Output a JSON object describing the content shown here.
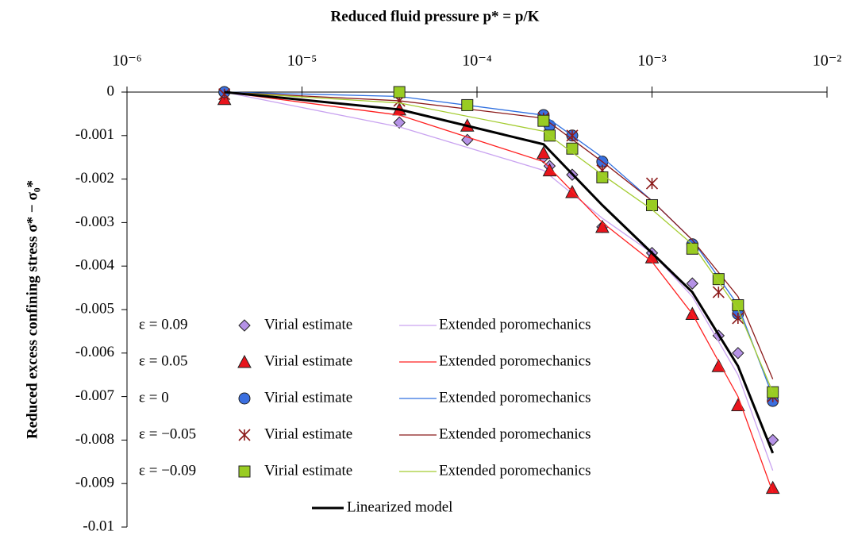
{
  "chart_data": {
    "type": "line",
    "title": "Reduced fluid pressure p* = p/K",
    "y_label": "Reduced excess confining stress σ* − σ₀*",
    "xscale": "log",
    "xlim": [
      1e-06,
      0.01
    ],
    "xticks": [
      {
        "value": 1e-06,
        "label": "10⁻⁶"
      },
      {
        "value": 1e-05,
        "label": "10⁻⁵"
      },
      {
        "value": 0.0001,
        "label": "10⁻⁴"
      },
      {
        "value": 0.001,
        "label": "10⁻³"
      },
      {
        "value": 0.01,
        "label": "10⁻²"
      }
    ],
    "ylim": [
      -0.01,
      0
    ],
    "yticks": [
      0,
      -0.001,
      -0.002,
      -0.003,
      -0.004,
      -0.005,
      -0.006,
      -0.007,
      -0.008,
      -0.009,
      -0.01
    ],
    "series": [
      {
        "name": "Virial estimate",
        "epsilon": "ε = 0.09",
        "kind": "marker",
        "marker": "diamond",
        "color": "#b592e6",
        "x": [
          3.6e-06,
          3.6e-05,
          8.8e-05,
          0.00024,
          0.00026,
          0.00035,
          0.00052,
          0.001,
          0.0017,
          0.0024,
          0.0031,
          0.0049
        ],
        "values": [
          0,
          -0.0007,
          -0.0011,
          -0.0015,
          -0.0017,
          -0.0019,
          -0.0031,
          -0.0037,
          -0.0044,
          -0.0056,
          -0.006,
          -0.008
        ]
      },
      {
        "name": "Extended poromechanics",
        "kind": "line",
        "color": "#c9a3f0",
        "x": [
          3.6e-06,
          3.6e-05,
          0.00024,
          0.00052,
          0.001,
          0.0017,
          0.0031,
          0.0049
        ],
        "values": [
          0,
          -0.0008,
          -0.0018,
          -0.0029,
          -0.0037,
          -0.0047,
          -0.0065,
          -0.0087
        ]
      },
      {
        "name": "Virial estimate",
        "epsilon": "ε = 0.05",
        "kind": "marker",
        "marker": "triangle",
        "color": "#e8141c",
        "x": [
          3.6e-06,
          3.6e-05,
          8.8e-05,
          0.00024,
          0.00026,
          0.00035,
          0.00052,
          0.001,
          0.0017,
          0.0024,
          0.0031,
          0.0049
        ],
        "values": [
          -0.00016,
          -0.0004,
          -0.00077,
          -0.0014,
          -0.0018,
          -0.0023,
          -0.0031,
          -0.0038,
          -0.0051,
          -0.0063,
          -0.0072,
          -0.0091
        ]
      },
      {
        "name": "Extended poromechanics",
        "kind": "line",
        "color": "#ff2020",
        "x": [
          3.6e-06,
          3.6e-05,
          0.00024,
          0.00052,
          0.001,
          0.0017,
          0.0031,
          0.0049
        ],
        "values": [
          0,
          -0.00053,
          -0.0016,
          -0.003,
          -0.0039,
          -0.0051,
          -0.007,
          -0.0092
        ]
      },
      {
        "name": "Virial estimate",
        "epsilon": "ε = 0",
        "kind": "marker",
        "marker": "circle",
        "color": "#3b6fe0",
        "x": [
          3.6e-06,
          0.00024,
          0.00026,
          0.00035,
          0.00052,
          0.0017,
          0.0031,
          0.0049
        ],
        "values": [
          0,
          -0.00053,
          -0.00077,
          -0.001,
          -0.0016,
          -0.0035,
          -0.0051,
          -0.0071
        ]
      },
      {
        "name": "Extended poromechanics",
        "kind": "line",
        "color": "#3070e0",
        "x": [
          3.6e-06,
          3.6e-05,
          0.00024,
          0.00052,
          0.001,
          0.0017,
          0.0031,
          0.0049
        ],
        "values": [
          0,
          -0.0001,
          -0.00053,
          -0.0015,
          -0.0025,
          -0.0034,
          -0.0049,
          -0.007
        ]
      },
      {
        "name": "Virial estimate",
        "epsilon": "ε = −0.05",
        "kind": "marker",
        "marker": "asterisk",
        "color": "#8b1a1a",
        "x": [
          3.6e-06,
          3.6e-05,
          8.8e-05,
          0.00024,
          0.00035,
          0.00052,
          0.001,
          0.0017,
          0.0024,
          0.0031,
          0.0049
        ],
        "values": [
          -5e-05,
          -0.0002,
          -0.0003,
          -0.0006,
          -0.001,
          -0.0018,
          -0.0021,
          -0.0036,
          -0.0046,
          -0.0052,
          -0.007
        ]
      },
      {
        "name": "Extended poromechanics",
        "kind": "line",
        "color": "#8b1a1a",
        "x": [
          3.6e-06,
          3.6e-05,
          0.00024,
          0.00052,
          0.001,
          0.0017,
          0.0031,
          0.0049
        ],
        "values": [
          0,
          -0.0002,
          -0.0006,
          -0.0016,
          -0.0025,
          -0.0034,
          -0.0047,
          -0.0066
        ]
      },
      {
        "name": "Virial estimate",
        "epsilon": "ε = −0.09",
        "kind": "marker",
        "marker": "square",
        "color": "#99cc22",
        "x": [
          3.6e-05,
          8.8e-05,
          0.00024,
          0.00026,
          0.00035,
          0.00052,
          0.001,
          0.0017,
          0.0024,
          0.0031,
          0.0049
        ],
        "values": [
          0,
          -0.0003,
          -0.00066,
          -0.001,
          -0.0013,
          -0.00196,
          -0.0026,
          -0.0036,
          -0.0043,
          -0.0049,
          -0.0069
        ]
      },
      {
        "name": "Extended poromechanics",
        "kind": "line",
        "color": "#a4cc30",
        "x": [
          3.6e-06,
          3.6e-05,
          0.00024,
          0.00052,
          0.001,
          0.0017,
          0.0031,
          0.0049
        ],
        "values": [
          0,
          -0.00025,
          -0.0009,
          -0.0019,
          -0.0027,
          -0.0035,
          -0.005,
          -0.0069
        ]
      },
      {
        "name": "Linearized model",
        "kind": "line",
        "color": "#000000",
        "width": 3,
        "x": [
          3.6e-06,
          3.6e-05,
          0.00024,
          0.00052,
          0.001,
          0.0017,
          0.0031,
          0.0049
        ],
        "values": [
          0,
          -0.0004,
          -0.0012,
          -0.0026,
          -0.0037,
          -0.0046,
          -0.0063,
          -0.0083
        ]
      }
    ]
  }
}
